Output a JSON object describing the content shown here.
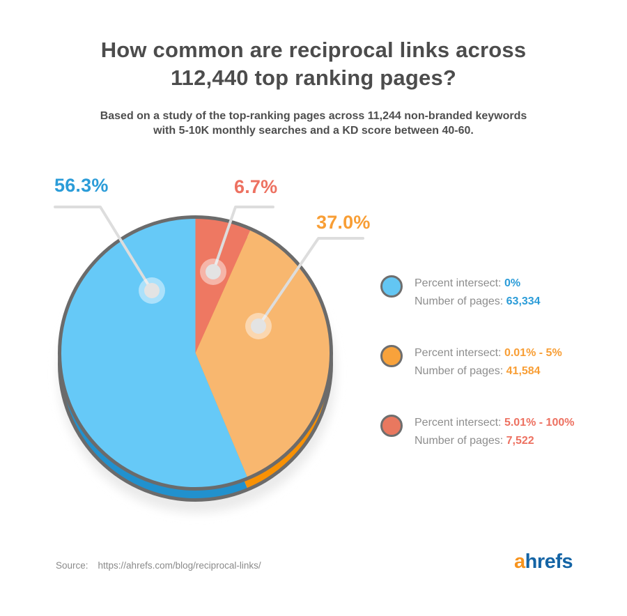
{
  "header": {
    "title_line1": "How common are reciprocal links across",
    "title_line2": "112,440 top ranking pages?",
    "subtitle_line1": "Based on a study of the top-ranking pages across 11,244 non-branded keywords",
    "subtitle_line2": "with 5-10K monthly searches and a KD score between 40-60."
  },
  "chart_data": {
    "type": "pie",
    "title": "How common are reciprocal links across 112,440 top ranking pages?",
    "subtitle": "Based on a study of the top-ranking pages across 11,244 non-branded keywords with 5-10K monthly searches and a KD score between 40-60.",
    "total_pages": "112,440",
    "legend_position": "right",
    "slices": [
      {
        "key": "intersect-0",
        "name": "Percent intersect: 0%",
        "percent": 56.3,
        "pages": 63334,
        "callout": "56.3%",
        "color": "#66C9F7",
        "rim_color": "#2191CE",
        "text_color": "#2B9CD8"
      },
      {
        "key": "intersect-0-5",
        "name": "Percent intersect: 0.01% - 5%",
        "percent": 37.0,
        "pages": 41584,
        "callout": "37.0%",
        "color": "#F8B76F",
        "rim_color": "#F89104",
        "text_color": "#F89E35"
      },
      {
        "key": "intersect-5-100",
        "name": "Percent intersect: 5.01% - 100%",
        "percent": 6.7,
        "pages": 7522,
        "callout": "6.7%",
        "color": "#EE7862",
        "rim_color": "#DD5D45",
        "text_color": "#ED7161"
      }
    ],
    "clockwise_from_top": [
      2,
      1,
      0
    ],
    "style": {
      "outline_color": "#6B6B6B",
      "leader_color": "#DDDDDD",
      "dot_color": "#E3E3E3",
      "halo_color": "rgba(255,255,255,0.45)",
      "shadow_color": "#EAEAEA"
    }
  },
  "legend": {
    "percent_label": "Percent intersect:",
    "pages_label": "Number of pages:",
    "items": [
      {
        "value": "0%",
        "pages": "63,334",
        "swatch": "#63C6F3"
      },
      {
        "value": "0.01% - 5%",
        "pages": "41,584",
        "swatch": "#F8A23B"
      },
      {
        "value": "5.01% - 100%",
        "pages": "7,522",
        "swatch": "#E9785F"
      }
    ]
  },
  "footer": {
    "source_label": "Source:",
    "source_url": "https://ahrefs.com/blog/reciprocal-links/",
    "logo_first": "a",
    "logo_rest": "hrefs",
    "logo_colors": {
      "first": "#F7941E",
      "rest": "#1464A5"
    }
  }
}
